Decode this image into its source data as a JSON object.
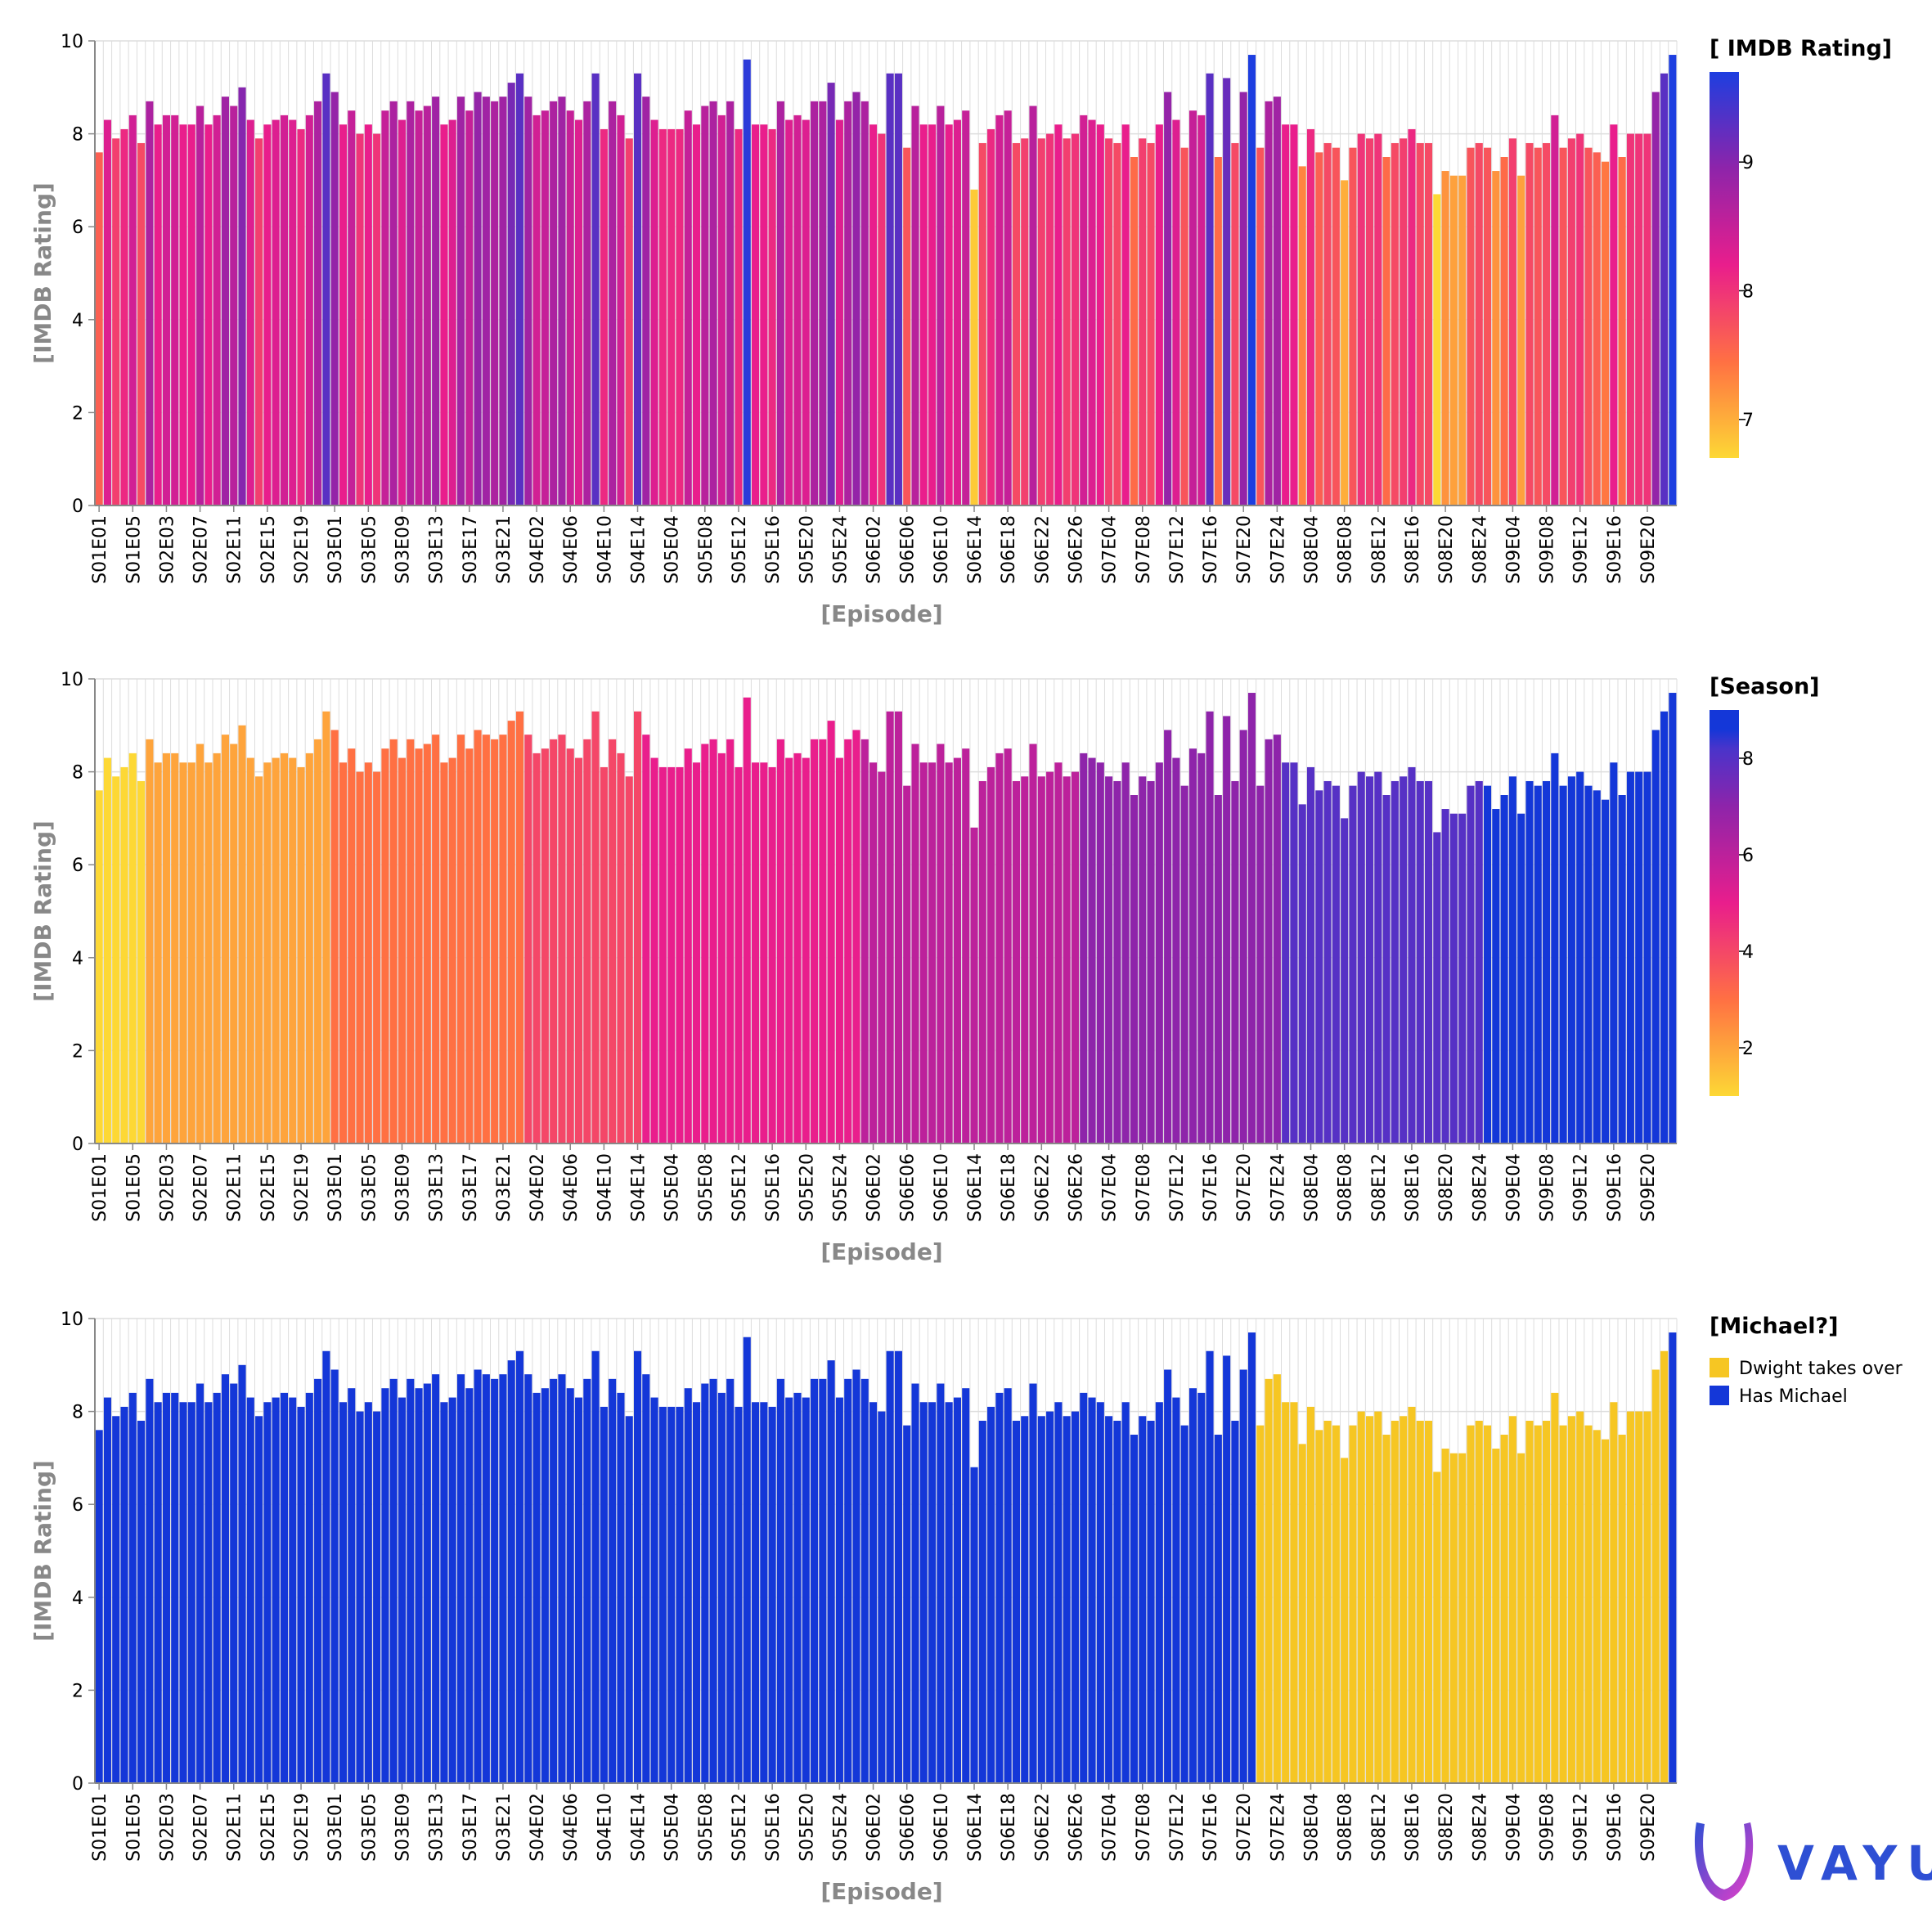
{
  "colors": {
    "grid": "#dddddd",
    "axis": "#888888",
    "label": "#888888",
    "text": "#000000",
    "ramp_low": "#fdd835",
    "ramp_mid1": "#ff7043",
    "ramp_mid2": "#e91e8c",
    "ramp_mid3": "#8e24aa",
    "ramp_high": "#1d3ee0",
    "dwight": "#f6c623",
    "michael": "#1437d8",
    "logo_blue": "#2e4fd4",
    "logo_pink": "#e83ec8"
  },
  "logo": {
    "text": "VAYU"
  },
  "chart_data": [
    {
      "type": "bar",
      "color_by": "rating",
      "title": "",
      "xlabel": "[Episode]",
      "ylabel": "[IMDB Rating]",
      "ylim": [
        0,
        10
      ],
      "yticks": [
        0,
        2,
        4,
        6,
        8,
        10
      ],
      "grid": true,
      "legend": {
        "title": "[ IMDB Rating]",
        "kind": "gradient",
        "ticks": [
          7,
          8,
          9
        ],
        "range": [
          6.7,
          9.7
        ],
        "position": "right"
      },
      "xtick_labels": [
        "S01E01",
        "S01E05",
        "S02E03",
        "S02E07",
        "S02E11",
        "S02E15",
        "S02E19",
        "S03E01",
        "S03E05",
        "S03E09",
        "S03E13",
        "S03E17",
        "S03E21",
        "S04E02",
        "S04E06",
        "S04E10",
        "S04E14",
        "S05E04",
        "S05E08",
        "S05E12",
        "S05E16",
        "S05E20",
        "S05E24",
        "S06E02",
        "S06E06",
        "S06E10",
        "S06E14",
        "S06E18",
        "S06E22",
        "S06E26",
        "S07E04",
        "S07E08",
        "S07E12",
        "S07E16",
        "S07E20",
        "S07E24",
        "S08E04",
        "S08E08",
        "S08E12",
        "S08E16",
        "S08E20",
        "S08E24",
        "S09E04",
        "S09E08",
        "S09E12",
        "S09E16",
        "S09E20"
      ]
    },
    {
      "type": "bar",
      "color_by": "season",
      "title": "",
      "xlabel": "[Episode]",
      "ylabel": "[IMDB Rating]",
      "ylim": [
        0,
        10
      ],
      "yticks": [
        0,
        2,
        4,
        6,
        8,
        10
      ],
      "grid": true,
      "legend": {
        "title": "[Season]",
        "kind": "gradient",
        "ticks": [
          2,
          4,
          6,
          8
        ],
        "range": [
          1,
          9
        ],
        "position": "right"
      },
      "xtick_labels": [
        "S01E01",
        "S01E05",
        "S02E03",
        "S02E07",
        "S02E11",
        "S02E15",
        "S02E19",
        "S03E01",
        "S03E05",
        "S03E09",
        "S03E13",
        "S03E17",
        "S03E21",
        "S04E02",
        "S04E06",
        "S04E10",
        "S04E14",
        "S05E04",
        "S05E08",
        "S05E12",
        "S05E16",
        "S05E20",
        "S05E24",
        "S06E02",
        "S06E06",
        "S06E10",
        "S06E14",
        "S06E18",
        "S06E22",
        "S06E26",
        "S07E04",
        "S07E08",
        "S07E12",
        "S07E16",
        "S07E20",
        "S07E24",
        "S08E04",
        "S08E08",
        "S08E12",
        "S08E16",
        "S08E20",
        "S08E24",
        "S09E04",
        "S09E08",
        "S09E12",
        "S09E16",
        "S09E20"
      ]
    },
    {
      "type": "bar",
      "color_by": "michael",
      "title": "",
      "xlabel": "[Episode]",
      "ylabel": "[IMDB Rating]",
      "ylim": [
        0,
        10
      ],
      "yticks": [
        0,
        2,
        4,
        6,
        8,
        10
      ],
      "grid": true,
      "legend": {
        "title": "[Michael?]",
        "kind": "categorical",
        "position": "right",
        "items": [
          {
            "label": "Dwight takes over",
            "color": "#f6c623"
          },
          {
            "label": "Has Michael",
            "color": "#1437d8"
          }
        ]
      },
      "xtick_labels": [
        "S01E01",
        "S01E05",
        "S02E03",
        "S02E07",
        "S02E11",
        "S02E15",
        "S02E19",
        "S03E01",
        "S03E05",
        "S03E09",
        "S03E13",
        "S03E17",
        "S03E21",
        "S04E02",
        "S04E06",
        "S04E10",
        "S04E14",
        "S05E04",
        "S05E08",
        "S05E12",
        "S05E16",
        "S05E20",
        "S05E24",
        "S06E02",
        "S06E06",
        "S06E10",
        "S06E14",
        "S06E18",
        "S06E22",
        "S06E26",
        "S07E04",
        "S07E08",
        "S07E12",
        "S07E16",
        "S07E20",
        "S07E24",
        "S08E04",
        "S08E08",
        "S08E12",
        "S08E16",
        "S08E20",
        "S08E24",
        "S09E04",
        "S09E08",
        "S09E12",
        "S09E16",
        "S09E20"
      ]
    }
  ],
  "episodes": {
    "seasons": [
      {
        "season": 1,
        "ratings": [
          7.6,
          8.3,
          7.9,
          8.1,
          8.4,
          7.8
        ]
      },
      {
        "season": 2,
        "ratings": [
          8.7,
          8.2,
          8.4,
          8.4,
          8.2,
          8.2,
          8.6,
          8.2,
          8.4,
          8.8,
          8.6,
          9.0,
          8.3,
          7.9,
          8.2,
          8.3,
          8.4,
          8.3,
          8.1,
          8.4,
          8.7,
          9.3
        ]
      },
      {
        "season": 3,
        "ratings": [
          8.9,
          8.2,
          8.5,
          8.0,
          8.2,
          8.0,
          8.5,
          8.7,
          8.3,
          8.7,
          8.5,
          8.6,
          8.8,
          8.2,
          8.3,
          8.8,
          8.5,
          8.9,
          8.8,
          8.7,
          8.8,
          9.1,
          9.3
        ]
      },
      {
        "season": 4,
        "ratings": [
          8.8,
          8.4,
          8.5,
          8.7,
          8.8,
          8.5,
          8.3,
          8.7,
          9.3,
          8.1,
          8.7,
          8.4,
          7.9,
          9.3
        ]
      },
      {
        "season": 5,
        "ratings": [
          8.8,
          8.3,
          8.1,
          8.1,
          8.1,
          8.5,
          8.2,
          8.6,
          8.7,
          8.4,
          8.7,
          8.1,
          9.6,
          8.2,
          8.2,
          8.1,
          8.7,
          8.3,
          8.4,
          8.3,
          8.7,
          8.7,
          9.1,
          8.3,
          8.7,
          8.9
        ]
      },
      {
        "season": 6,
        "ratings": [
          8.7,
          8.2,
          8.0,
          9.3,
          9.3,
          7.7,
          8.6,
          8.2,
          8.2,
          8.6,
          8.2,
          8.3,
          8.5,
          6.8,
          7.8,
          8.1,
          8.4,
          8.5,
          7.8,
          7.9,
          8.6,
          7.9,
          8.0,
          8.2,
          7.9,
          8.0
        ]
      },
      {
        "season": 7,
        "ratings": [
          8.4,
          8.3,
          8.2,
          7.9,
          7.8,
          8.2,
          7.5,
          7.9,
          7.8,
          8.2,
          8.9,
          8.3,
          7.7,
          8.5,
          8.4,
          9.3,
          7.5,
          9.2,
          7.8,
          8.9,
          9.7,
          7.7,
          8.7,
          8.8
        ]
      },
      {
        "season": 8,
        "ratings": [
          8.2,
          8.2,
          7.3,
          8.1,
          7.6,
          7.8,
          7.7,
          7.0,
          7.7,
          8.0,
          7.9,
          8.0,
          7.5,
          7.8,
          7.9,
          8.1,
          7.8,
          7.8,
          6.7,
          7.2,
          7.1,
          7.1,
          7.7,
          7.8
        ]
      },
      {
        "season": 9,
        "ratings": [
          7.7,
          7.2,
          7.5,
          7.9,
          7.1,
          7.8,
          7.7,
          7.8,
          8.4,
          7.7,
          7.9,
          8.0,
          7.7,
          7.6,
          7.4,
          8.2,
          7.5,
          8.0,
          8.0,
          8.0,
          8.9,
          9.3,
          9.7
        ]
      }
    ],
    "michael_ranges": {
      "has_michael_until": "S07E21",
      "dwight_from": "S07E22",
      "final_has_michael": "S09E23"
    }
  }
}
